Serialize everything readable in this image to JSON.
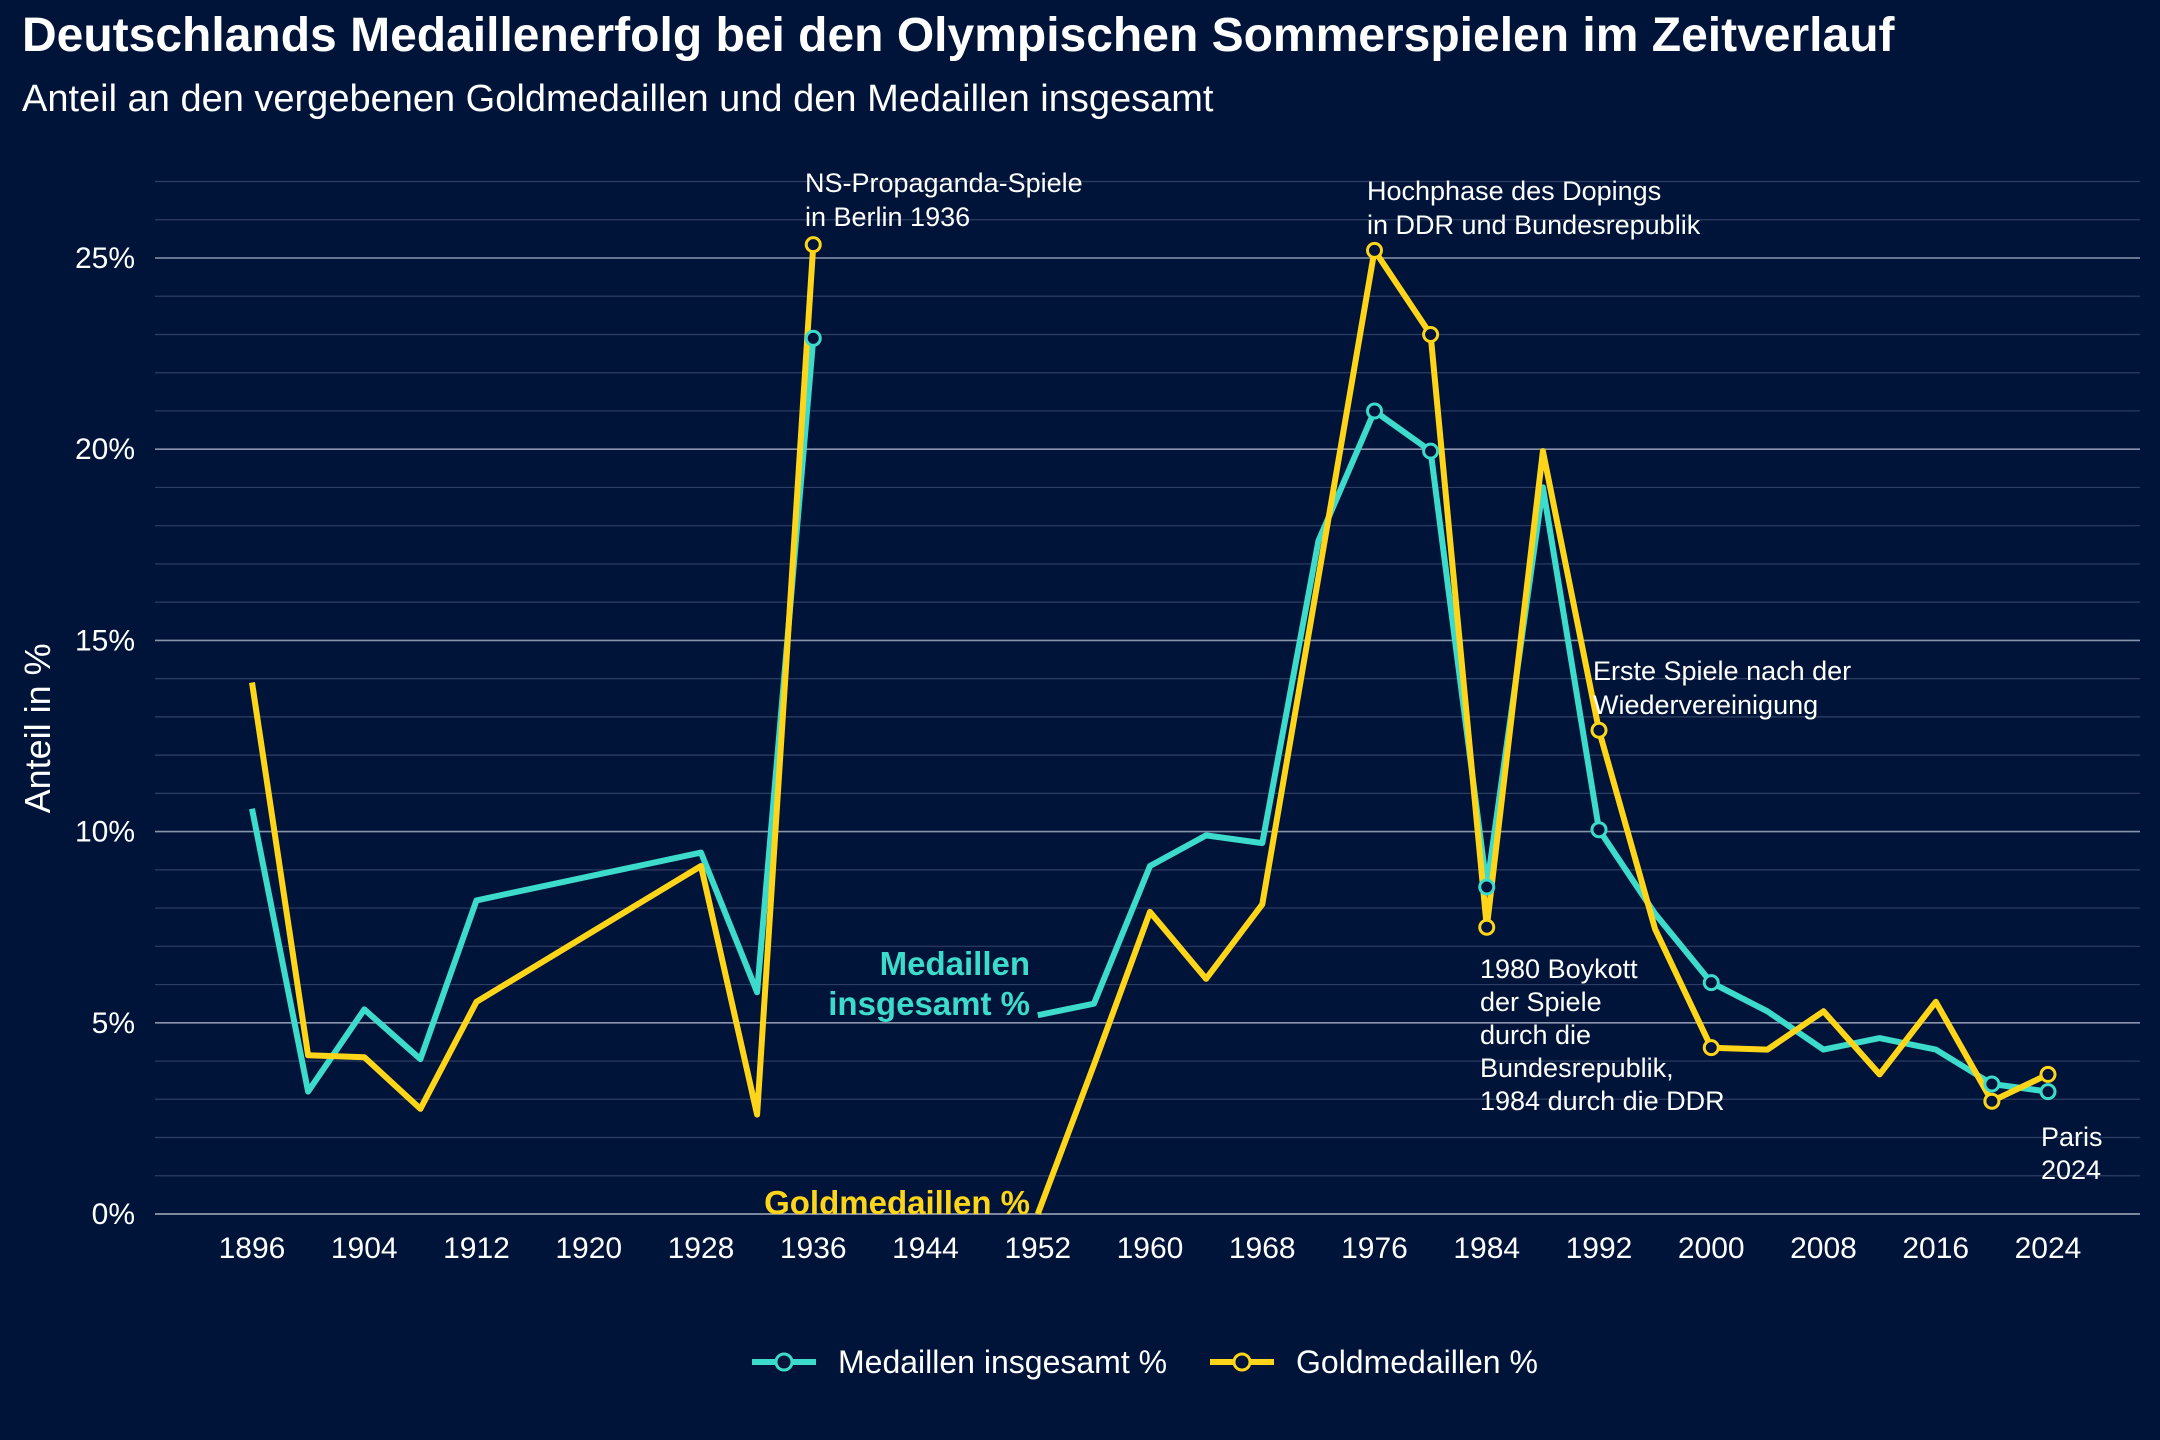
{
  "title": "Deutschlands Medaillenerfolg bei den Olympischen Sommerspielen im Zeitverlauf",
  "subtitle": "Anteil an den vergebenen Goldmedaillen und den Medaillen insgesamt",
  "chart_data": {
    "type": "line",
    "ylabel": "Anteil in %",
    "xlabel": "",
    "ylim": [
      0,
      27
    ],
    "xlim": [
      1890,
      2030
    ],
    "yticks": [
      0,
      5,
      10,
      15,
      20,
      25
    ],
    "ytick_labels": [
      "0%",
      "5%",
      "10%",
      "15%",
      "20%",
      "25%"
    ],
    "xticks": [
      1896,
      1904,
      1912,
      1920,
      1928,
      1936,
      1944,
      1952,
      1960,
      1968,
      1976,
      1984,
      1992,
      2000,
      2008,
      2016,
      2024
    ],
    "xtick_labels": [
      "1896",
      "1904",
      "1912",
      "1920",
      "1928",
      "1936",
      "1944",
      "1952",
      "1960",
      "1968",
      "1976",
      "1984",
      "1992",
      "2000",
      "2008",
      "2016",
      "2024"
    ],
    "grid": "horizontal",
    "legend_position": "bottom",
    "series": [
      {
        "name": "Medaillen insgesamt %",
        "color": "#3DDBCB",
        "segments": [
          [
            [
              1896,
              10.6
            ],
            [
              1900,
              3.2
            ],
            [
              1904,
              5.35
            ],
            [
              1908,
              4.05
            ],
            [
              1912,
              8.2
            ],
            [
              1928,
              9.45
            ],
            [
              1932,
              5.8
            ],
            [
              1936,
              22.9
            ]
          ],
          [
            [
              1952,
              5.2
            ],
            [
              1956,
              5.5
            ],
            [
              1960,
              9.1
            ],
            [
              1964,
              9.9
            ],
            [
              1968,
              9.7
            ],
            [
              1972,
              17.6
            ],
            [
              1976,
              21.0
            ],
            [
              1980,
              19.95
            ],
            [
              1984,
              8.55
            ],
            [
              1988,
              19.0
            ],
            [
              1992,
              10.05
            ],
            [
              1996,
              7.85
            ],
            [
              2000,
              6.05
            ],
            [
              2004,
              5.3
            ],
            [
              2008,
              4.3
            ],
            [
              2012,
              4.6
            ],
            [
              2016,
              4.3
            ],
            [
              2020,
              3.4
            ],
            [
              2024,
              3.2
            ]
          ]
        ],
        "markers": [
          [
            1936,
            22.9
          ],
          [
            1976,
            21.0
          ],
          [
            1980,
            19.95
          ],
          [
            1984,
            8.55
          ],
          [
            1992,
            10.05
          ],
          [
            2000,
            6.05
          ],
          [
            2020,
            3.4
          ],
          [
            2024,
            3.2
          ]
        ]
      },
      {
        "name": "Goldmedaillen %",
        "color": "#FFD51A",
        "segments": [
          [
            [
              1896,
              13.9
            ],
            [
              1900,
              4.15
            ],
            [
              1904,
              4.1
            ],
            [
              1908,
              2.75
            ],
            [
              1912,
              5.55
            ],
            [
              1928,
              9.1
            ],
            [
              1932,
              2.6
            ],
            [
              1936,
              25.35
            ]
          ],
          [
            [
              1952,
              0.0
            ],
            [
              1956,
              3.9
            ],
            [
              1960,
              7.9
            ],
            [
              1964,
              6.15
            ],
            [
              1968,
              8.1
            ],
            [
              1976,
              25.2
            ],
            [
              1980,
              23.0
            ],
            [
              1984,
              7.5
            ],
            [
              1988,
              19.95
            ],
            [
              1992,
              12.65
            ],
            [
              1996,
              7.45
            ],
            [
              2000,
              4.35
            ],
            [
              2004,
              4.3
            ],
            [
              2008,
              5.3
            ],
            [
              2012,
              3.65
            ],
            [
              2016,
              5.55
            ],
            [
              2020,
              2.95
            ],
            [
              2024,
              3.65
            ]
          ]
        ],
        "markers": [
          [
            1936,
            25.35
          ],
          [
            1976,
            25.2
          ],
          [
            1980,
            23.0
          ],
          [
            1984,
            7.5
          ],
          [
            1992,
            12.65
          ],
          [
            2000,
            4.35
          ],
          [
            2020,
            2.95
          ],
          [
            2024,
            3.65
          ]
        ]
      }
    ],
    "series_labels": [
      {
        "series": 0,
        "lines": [
          "Medaillen",
          "insgesamt %"
        ]
      },
      {
        "series": 1,
        "lines": [
          "Goldmedaillen %"
        ]
      }
    ],
    "annotations": [
      {
        "x": 1936,
        "lines": [
          "NS-Propaganda-Spiele",
          "in Berlin 1936"
        ]
      },
      {
        "x": 1976,
        "lines": [
          "Hochphase des Dopings",
          "in DDR und Bundesrepublik"
        ]
      },
      {
        "x": 1992,
        "lines": [
          "Erste Spiele nach der",
          "Wiedervereinigung"
        ]
      },
      {
        "x": 1984,
        "lines": [
          "1980 Boykott",
          "der Spiele",
          "durch die",
          "Bundesrepublik,",
          "1984 durch die DDR"
        ]
      },
      {
        "x": 2024,
        "lines": [
          "Paris",
          "2024"
        ]
      }
    ]
  }
}
